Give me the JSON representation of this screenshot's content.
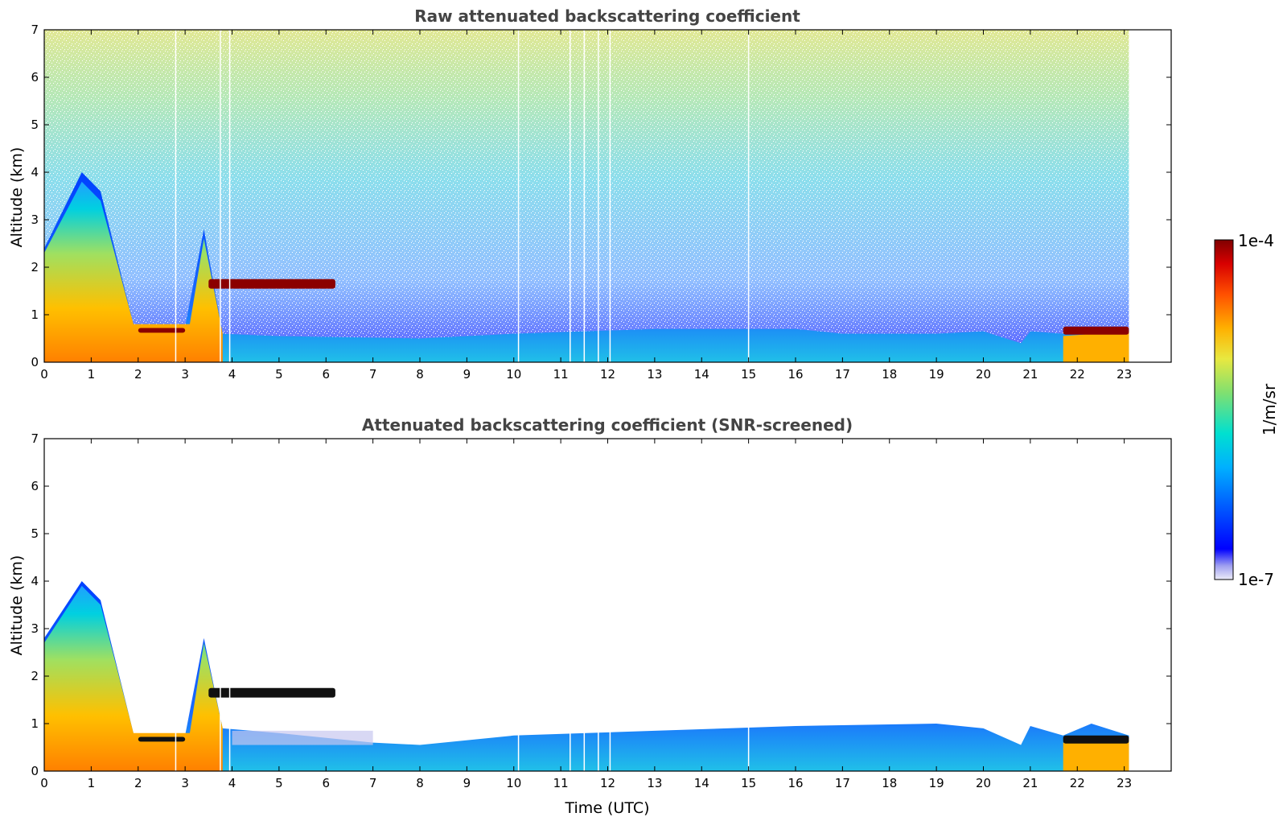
{
  "chart_data": [
    {
      "type": "heatmap",
      "title": "Raw attenuated backscattering coefficient",
      "xlabel": "",
      "ylabel": "Altitude (km)",
      "xlim": [
        0,
        24
      ],
      "ylim": [
        0,
        7
      ],
      "x_ticks": [
        "0",
        "1",
        "2",
        "3",
        "4",
        "5",
        "6",
        "7",
        "8",
        "9",
        "10",
        "11",
        "12",
        "13",
        "14",
        "15",
        "16",
        "17",
        "18",
        "19",
        "20",
        "21",
        "22",
        "23"
      ],
      "y_ticks": [
        "0",
        "1",
        "2",
        "3",
        "4",
        "5",
        "6",
        "7"
      ],
      "data_end_time": 23.1,
      "boundary_layer_top_km": [
        [
          0,
          2.4
        ],
        [
          0.8,
          4.0
        ],
        [
          1.2,
          3.6
        ],
        [
          1.9,
          0.8
        ],
        [
          2.0,
          0.7
        ],
        [
          3.0,
          0.75
        ],
        [
          3.4,
          2.8
        ],
        [
          3.8,
          0.6
        ],
        [
          5,
          0.55
        ],
        [
          8,
          0.5
        ],
        [
          10,
          0.6
        ],
        [
          13,
          0.7
        ],
        [
          16,
          0.7
        ],
        [
          17,
          0.6
        ],
        [
          19,
          0.6
        ],
        [
          20,
          0.65
        ],
        [
          20.8,
          0.4
        ],
        [
          21,
          0.65
        ],
        [
          21.7,
          0.6
        ],
        [
          22.3,
          0.7
        ],
        [
          23.1,
          0.7
        ]
      ],
      "cloud_layers": [
        {
          "start": 3.5,
          "end": 6.2,
          "base_km": 1.55,
          "top_km": 1.75
        },
        {
          "start": 2.0,
          "end": 3.0,
          "base_km": 0.62,
          "top_km": 0.72
        },
        {
          "start": 21.7,
          "end": 23.1,
          "base_km": 0.58,
          "top_km": 0.75
        }
      ],
      "grid": false
    },
    {
      "type": "heatmap",
      "title": "Attenuated backscattering coefficient (SNR-screened)",
      "xlabel": "Time (UTC)",
      "ylabel": "Altitude (km)",
      "xlim": [
        0,
        24
      ],
      "ylim": [
        0,
        7
      ],
      "x_ticks": [
        "0",
        "1",
        "2",
        "3",
        "4",
        "5",
        "6",
        "7",
        "8",
        "9",
        "10",
        "11",
        "12",
        "13",
        "14",
        "15",
        "16",
        "17",
        "18",
        "19",
        "20",
        "21",
        "22",
        "23"
      ],
      "y_ticks": [
        "0",
        "1",
        "2",
        "3",
        "4",
        "5",
        "6",
        "7"
      ],
      "data_end_time": 23.1,
      "screened_top_km": [
        [
          0,
          2.8
        ],
        [
          0.8,
          4.0
        ],
        [
          1.2,
          3.6
        ],
        [
          1.9,
          0.8
        ],
        [
          2.0,
          0.7
        ],
        [
          3.0,
          0.75
        ],
        [
          3.4,
          2.8
        ],
        [
          3.8,
          0.9
        ],
        [
          5,
          0.8
        ],
        [
          7,
          0.6
        ],
        [
          8,
          0.55
        ],
        [
          10,
          0.75
        ],
        [
          13,
          0.85
        ],
        [
          16,
          0.95
        ],
        [
          19,
          1.0
        ],
        [
          20,
          0.9
        ],
        [
          20.8,
          0.55
        ],
        [
          21,
          0.95
        ],
        [
          21.7,
          0.75
        ],
        [
          22.3,
          1.0
        ],
        [
          23.1,
          0.75
        ]
      ],
      "grid": false
    }
  ],
  "colorbar": {
    "label": "1/m/sr",
    "max_label": "1e-4",
    "min_label": "1e-7",
    "scale": "log",
    "range": [
      1e-07,
      0.0001
    ],
    "colormap": [
      "#e6e6f5",
      "#9a9af0",
      "#0000ff",
      "#0064ff",
      "#00c8ff",
      "#00e0c0",
      "#80e080",
      "#e0e040",
      "#ffc000",
      "#ff6000",
      "#e00000",
      "#800000"
    ]
  }
}
